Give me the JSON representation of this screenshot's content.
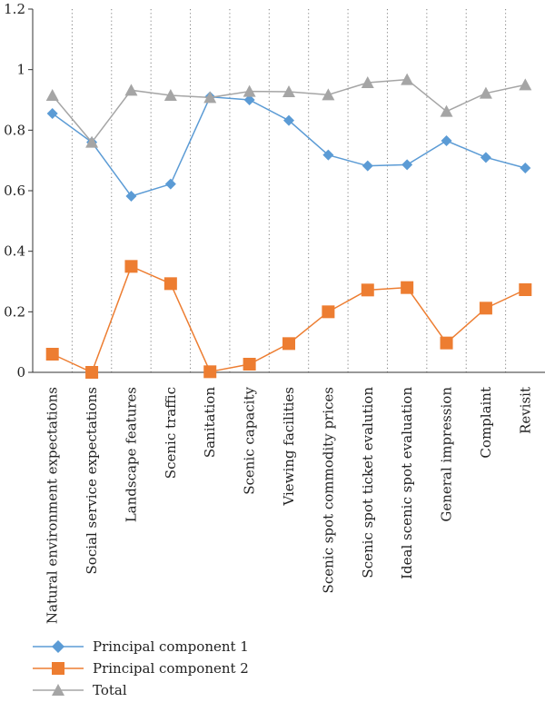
{
  "chart_data": {
    "type": "line",
    "categories": [
      "Natural environment expectations",
      "Social service expectations",
      "Landscape features",
      "Scenic traffic",
      "Sanitation",
      "Scenic capacity",
      "Viewing facilities",
      "Scenic spot commodity prices",
      "Scenic spot ticket evalution",
      "Ideal scenic spot evaluation",
      "General impression",
      "Complaint",
      "Revisit"
    ],
    "series": [
      {
        "name": "Principal component 1",
        "color": "#5b9bd5",
        "marker": "diamond",
        "values": [
          0.855,
          0.76,
          0.582,
          0.622,
          0.91,
          0.9,
          0.832,
          0.718,
          0.682,
          0.686,
          0.765,
          0.71,
          0.675
        ]
      },
      {
        "name": "Principal component 2",
        "color": "#ed7d31",
        "marker": "square",
        "values": [
          0.06,
          0.0,
          0.35,
          0.293,
          0.002,
          0.027,
          0.095,
          0.2,
          0.272,
          0.28,
          0.097,
          0.212,
          0.273
        ]
      },
      {
        "name": "Total",
        "color": "#a5a5a5",
        "marker": "triangle",
        "values": [
          0.915,
          0.76,
          0.932,
          0.915,
          0.908,
          0.928,
          0.927,
          0.917,
          0.957,
          0.967,
          0.862,
          0.922,
          0.95
        ]
      }
    ],
    "yticks": [
      "0",
      "0.2",
      "0.4",
      "0.6",
      "0.8",
      "1",
      "1.2"
    ],
    "ylim": [
      0,
      1.2
    ],
    "grid": "vertical dotted gridlines between categories",
    "legend_position": "bottom-left"
  }
}
